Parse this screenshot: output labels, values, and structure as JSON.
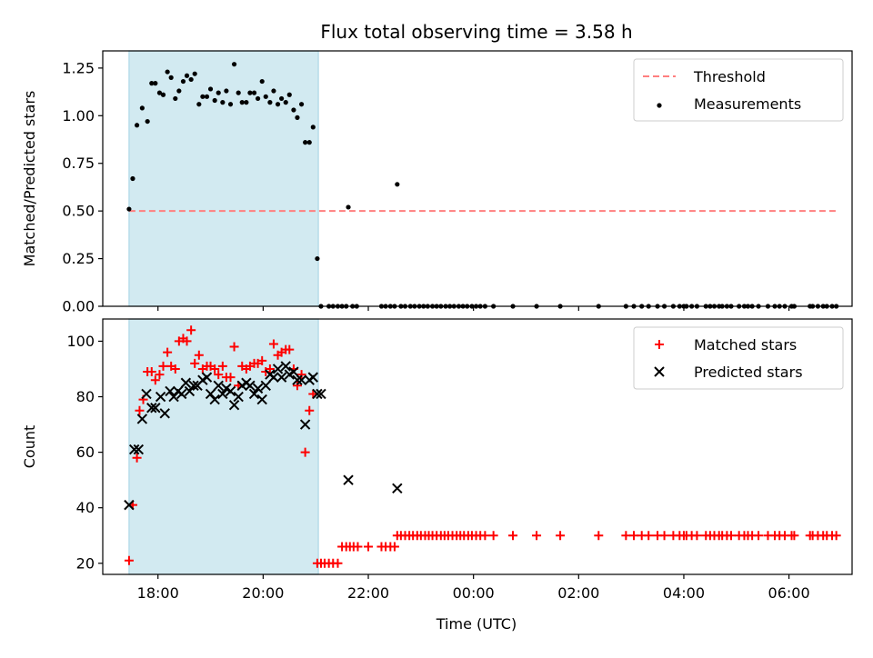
{
  "figure": {
    "title": "Flux total observing time = 3.58 h",
    "xlabel": "Time (UTC)"
  },
  "colors": {
    "highlight": "#add8e6",
    "threshold": "#ff7f7f",
    "measurements": "#000000",
    "matched": "#ff0000",
    "predicted": "#000000"
  },
  "chart_data": [
    {
      "type": "scatter",
      "ylabel": "Matched/Predicted stars",
      "xlim": [
        16.95,
        31.2
      ],
      "ylim": [
        0,
        1.34
      ],
      "yticks": [
        0,
        0.25,
        0.5,
        0.75,
        1.0,
        1.25
      ],
      "ytick_labels": [
        "0.00",
        "0.25",
        "0.50",
        "0.75",
        "1.00",
        "1.25"
      ],
      "xticks": [
        18,
        20,
        22,
        24,
        26,
        28,
        30
      ],
      "highlight_span": [
        17.45,
        21.05
      ],
      "legend": {
        "position": "upper-right",
        "entries": [
          "Threshold",
          "Measurements"
        ]
      },
      "threshold": {
        "name": "Threshold",
        "value": 0.5,
        "x": [
          17.45,
          30.9
        ]
      },
      "series": [
        {
          "name": "Measurements",
          "x": [
            17.45,
            17.52,
            17.6,
            17.7,
            17.8,
            17.88,
            17.95,
            18.03,
            18.1,
            18.18,
            18.25,
            18.33,
            18.4,
            18.48,
            18.55,
            18.63,
            18.7,
            18.78,
            18.85,
            18.93,
            19.0,
            19.08,
            19.15,
            19.23,
            19.3,
            19.38,
            19.45,
            19.53,
            19.6,
            19.68,
            19.75,
            19.83,
            19.9,
            19.98,
            20.05,
            20.13,
            20.2,
            20.28,
            20.35,
            20.43,
            20.5,
            20.58,
            20.65,
            20.73,
            20.8,
            20.88,
            20.95,
            21.03,
            21.1,
            21.62,
            22.55,
            21.25,
            21.33,
            21.42,
            21.5,
            21.58,
            21.7,
            21.78,
            22.25,
            22.33,
            22.42,
            22.5,
            22.62,
            22.7,
            22.8,
            22.88,
            22.97,
            23.05,
            23.13,
            23.22,
            23.3,
            23.38,
            23.47,
            23.55,
            23.63,
            23.72,
            23.8,
            23.88,
            23.97,
            24.05,
            24.13,
            24.22,
            24.38,
            24.75,
            25.2,
            25.65,
            26.38,
            26.9,
            27.05,
            27.2,
            27.33,
            27.5,
            27.63,
            27.8,
            27.92,
            28.0,
            28.05,
            28.15,
            28.25,
            28.42,
            28.5,
            28.58,
            28.67,
            28.73,
            28.82,
            28.9,
            29.05,
            29.15,
            29.22,
            29.3,
            29.42,
            29.6,
            29.73,
            29.82,
            29.92,
            30.05,
            30.1,
            30.4,
            30.45,
            30.55,
            30.65,
            30.72,
            30.82,
            30.9
          ],
          "y": [
            0.51,
            0.67,
            0.95,
            1.04,
            0.97,
            1.17,
            1.17,
            1.12,
            1.11,
            1.23,
            1.2,
            1.09,
            1.13,
            1.18,
            1.21,
            1.19,
            1.22,
            1.06,
            1.1,
            1.1,
            1.14,
            1.08,
            1.12,
            1.07,
            1.13,
            1.06,
            1.27,
            1.12,
            1.07,
            1.07,
            1.12,
            1.12,
            1.09,
            1.18,
            1.1,
            1.07,
            1.13,
            1.06,
            1.09,
            1.07,
            1.11,
            1.03,
            0.99,
            1.06,
            0.86,
            0.86,
            0.94,
            0.25,
            0.0,
            0.52,
            0.64,
            0.0,
            0.0,
            0.0,
            0.0,
            0.0,
            0.0,
            0.0,
            0.0,
            0.0,
            0.0,
            0.0,
            0.0,
            0.0,
            0.0,
            0.0,
            0.0,
            0.0,
            0.0,
            0.0,
            0.0,
            0.0,
            0.0,
            0.0,
            0.0,
            0.0,
            0.0,
            0.0,
            0.0,
            0.0,
            0.0,
            0.0,
            0.0,
            0.0,
            0.0,
            0.0,
            0.0,
            0.0,
            0.0,
            0.0,
            0.0,
            0.0,
            0.0,
            0.0,
            0.0,
            0.0,
            0.0,
            0.0,
            0.0,
            0.0,
            0.0,
            0.0,
            0.0,
            0.0,
            0.0,
            0.0,
            0.0,
            0.0,
            0.0,
            0.0,
            0.0,
            0.0,
            0.0,
            0.0,
            0.0,
            0.0,
            0.0,
            0.0,
            0.0,
            0.0,
            0.0,
            0.0,
            0.0,
            0.0
          ]
        }
      ]
    },
    {
      "type": "scatter",
      "ylabel": "Count",
      "xlim": [
        16.95,
        31.2
      ],
      "ylim": [
        16,
        108
      ],
      "yticks": [
        20,
        40,
        60,
        80,
        100
      ],
      "ytick_labels": [
        "20",
        "40",
        "60",
        "80",
        "100"
      ],
      "xticks": [
        18,
        20,
        22,
        24,
        26,
        28,
        30
      ],
      "xtick_labels": [
        "18:00",
        "20:00",
        "22:00",
        "00:00",
        "02:00",
        "04:00",
        "06:00"
      ],
      "highlight_span": [
        17.45,
        21.05
      ],
      "legend": {
        "position": "upper-right",
        "entries": [
          "Matched stars",
          "Predicted stars"
        ]
      },
      "series": [
        {
          "name": "Matched stars",
          "marker": "+",
          "x": [
            17.45,
            17.52,
            17.6,
            17.65,
            17.72,
            17.8,
            17.88,
            17.95,
            18.03,
            18.1,
            18.18,
            18.25,
            18.33,
            18.4,
            18.48,
            18.55,
            18.63,
            18.7,
            18.78,
            18.85,
            18.93,
            19.0,
            19.08,
            19.15,
            19.23,
            19.3,
            19.38,
            19.45,
            19.53,
            19.6,
            19.68,
            19.75,
            19.83,
            19.9,
            19.98,
            20.05,
            20.13,
            20.2,
            20.28,
            20.35,
            20.43,
            20.5,
            20.58,
            20.65,
            20.73,
            20.8,
            20.88,
            20.95,
            21.03,
            21.1,
            21.17,
            21.25,
            21.33,
            21.42,
            21.5,
            21.58,
            21.65,
            21.72,
            21.8,
            22.0,
            22.25,
            22.33,
            22.42,
            22.5,
            22.55,
            22.62,
            22.7,
            22.78,
            22.85,
            22.93,
            23.0,
            23.08,
            23.15,
            23.22,
            23.3,
            23.38,
            23.45,
            23.52,
            23.6,
            23.68,
            23.75,
            23.82,
            23.9,
            23.97,
            24.05,
            24.13,
            24.22,
            24.38,
            24.75,
            25.2,
            25.65,
            26.38,
            26.9,
            27.05,
            27.2,
            27.33,
            27.5,
            27.63,
            27.8,
            27.92,
            28.0,
            28.05,
            28.15,
            28.25,
            28.42,
            28.5,
            28.58,
            28.67,
            28.73,
            28.82,
            28.9,
            29.05,
            29.15,
            29.22,
            29.3,
            29.42,
            29.6,
            29.73,
            29.82,
            29.92,
            30.05,
            30.1,
            30.4,
            30.45,
            30.55,
            30.65,
            30.72,
            30.82,
            30.9
          ],
          "y": [
            21,
            41,
            58,
            75,
            79,
            89,
            89,
            86,
            88,
            91,
            96,
            91,
            90,
            100,
            101,
            100,
            104,
            92,
            95,
            90,
            91,
            91,
            90,
            88,
            91,
            87,
            87,
            98,
            84,
            91,
            90,
            91,
            92,
            92,
            93,
            89,
            90,
            99,
            95,
            96,
            97,
            97,
            90,
            84,
            88,
            60,
            75,
            81,
            20,
            20,
            20,
            20,
            20,
            20,
            26,
            26,
            26,
            26,
            26,
            26,
            26,
            26,
            26,
            26,
            30,
            30,
            30,
            30,
            30,
            30,
            30,
            30,
            30,
            30,
            30,
            30,
            30,
            30,
            30,
            30,
            30,
            30,
            30,
            30,
            30,
            30,
            30,
            30,
            30,
            30,
            30,
            30,
            30,
            30,
            30,
            30,
            30,
            30,
            30,
            30,
            30,
            30,
            30,
            30,
            30,
            30,
            30,
            30,
            30,
            30,
            30,
            30,
            30,
            30,
            30,
            30,
            30,
            30,
            30,
            30,
            30,
            30,
            30,
            30,
            30,
            30,
            30,
            30,
            30
          ]
        },
        {
          "name": "Predicted stars",
          "marker": "x",
          "x": [
            17.45,
            17.55,
            17.63,
            17.7,
            17.78,
            17.88,
            17.95,
            18.05,
            18.13,
            18.23,
            18.3,
            18.38,
            18.45,
            18.53,
            18.6,
            18.68,
            18.75,
            18.85,
            18.93,
            19.0,
            19.08,
            19.15,
            19.23,
            19.3,
            19.38,
            19.45,
            19.53,
            19.6,
            19.68,
            19.75,
            19.83,
            19.9,
            19.98,
            20.05,
            20.13,
            20.2,
            20.28,
            20.35,
            20.43,
            20.5,
            20.58,
            20.65,
            20.73,
            20.8,
            20.88,
            20.95,
            21.03,
            21.1,
            21.62,
            22.55
          ],
          "y": [
            41,
            61,
            61,
            72,
            81,
            76,
            76,
            80,
            74,
            82,
            80,
            82,
            81,
            85,
            82,
            84,
            84,
            86,
            87,
            81,
            79,
            84,
            81,
            83,
            82,
            77,
            80,
            84,
            85,
            84,
            81,
            83,
            79,
            84,
            88,
            87,
            90,
            87,
            91,
            88,
            89,
            86,
            86,
            70,
            86,
            87,
            81,
            81,
            50,
            47
          ]
        }
      ]
    }
  ]
}
